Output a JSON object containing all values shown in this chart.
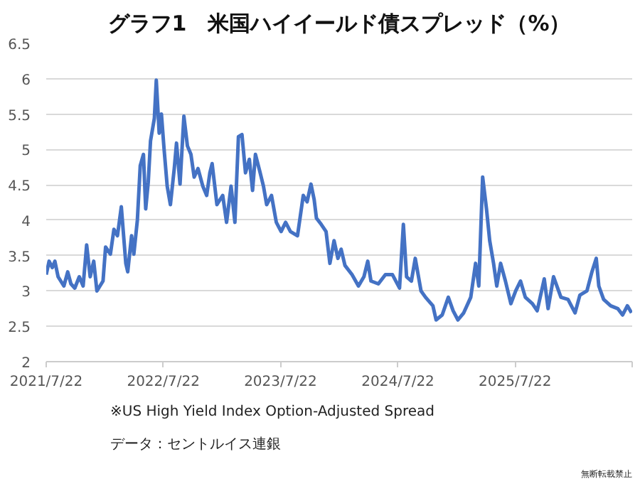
{
  "chart_data": {
    "type": "line",
    "title": "グラフ1　米国ハイイールド債スプレッド（%）",
    "x": [
      "2021-07-22",
      "2021-07-31",
      "2021-08-10",
      "2021-08-18",
      "2021-08-28",
      "2021-09-15",
      "2021-09-27",
      "2021-10-07",
      "2021-10-19",
      "2021-11-02",
      "2021-11-14",
      "2021-11-25",
      "2021-12-06",
      "2021-12-17",
      "2021-12-27",
      "2022-01-15",
      "2022-01-23",
      "2022-02-07",
      "2022-02-18",
      "2022-03-01",
      "2022-03-13",
      "2022-03-27",
      "2022-04-02",
      "2022-04-14",
      "2022-04-21",
      "2022-05-02",
      "2022-05-11",
      "2022-05-21",
      "2022-05-28",
      "2022-06-05",
      "2022-06-12",
      "2022-06-24",
      "2022-06-30",
      "2022-07-09",
      "2022-07-16",
      "2022-07-24",
      "2022-08-03",
      "2022-08-13",
      "2022-08-25",
      "2022-09-01",
      "2022-09-12",
      "2022-09-24",
      "2022-10-05",
      "2022-10-16",
      "2022-10-26",
      "2022-11-07",
      "2022-11-22",
      "2022-12-04",
      "2022-12-14",
      "2022-12-21",
      "2023-01-05",
      "2023-01-23",
      "2023-02-04",
      "2023-02-18",
      "2023-03-02",
      "2023-03-13",
      "2023-03-24",
      "2023-04-04",
      "2023-04-16",
      "2023-04-26",
      "2023-05-05",
      "2023-05-18",
      "2023-05-30",
      "2023-06-09",
      "2023-06-24",
      "2023-07-09",
      "2023-07-24",
      "2023-08-07",
      "2023-08-22",
      "2023-09-13",
      "2023-10-01",
      "2023-10-13",
      "2023-10-25",
      "2023-11-04",
      "2023-11-11",
      "2023-11-26",
      "2023-12-11",
      "2023-12-23",
      "2024-01-05",
      "2024-01-17",
      "2024-01-27",
      "2024-02-08",
      "2024-03-01",
      "2024-03-21",
      "2024-04-07",
      "2024-04-19",
      "2024-04-29",
      "2024-05-22",
      "2024-06-13",
      "2024-07-05",
      "2024-07-27",
      "2024-08-08",
      "2024-08-18",
      "2024-09-02",
      "2024-09-14",
      "2024-10-02",
      "2024-10-16",
      "2024-11-08",
      "2024-11-18",
      "2024-12-07",
      "2024-12-26",
      "2025-01-10",
      "2025-01-25",
      "2025-02-12",
      "2025-03-06",
      "2025-03-21",
      "2025-03-31",
      "2025-04-12",
      "2025-04-24",
      "2025-05-04",
      "2025-05-16",
      "2025-05-26",
      "2025-06-07",
      "2025-06-22",
      "2025-07-09",
      "2025-07-24",
      "2025-08-08",
      "2025-08-23",
      "2025-09-14",
      "2025-09-29",
      "2025-10-21",
      "2025-11-02",
      "2025-11-19",
      "2025-12-12",
      "2026-01-03",
      "2026-01-25",
      "2026-02-09",
      "2026-03-03",
      "2026-03-18",
      "2026-04-01",
      "2026-04-09",
      "2026-04-24",
      "2026-05-16",
      "2026-06-07",
      "2026-06-22",
      "2026-07-07",
      "2026-07-20"
    ],
    "series": [
      {
        "color": "#4472c4",
        "values": [
          3.23,
          3.42,
          3.33,
          3.42,
          3.2,
          3.07,
          3.27,
          3.1,
          3.04,
          3.2,
          3.07,
          3.65,
          3.2,
          3.42,
          3.0,
          3.14,
          3.62,
          3.52,
          3.87,
          3.78,
          4.19,
          3.39,
          3.27,
          3.78,
          3.52,
          4.0,
          4.77,
          4.93,
          4.16,
          4.54,
          5.12,
          5.44,
          5.98,
          5.23,
          5.5,
          5.02,
          4.48,
          4.22,
          4.73,
          5.09,
          4.51,
          5.47,
          5.05,
          4.93,
          4.61,
          4.73,
          4.48,
          4.35,
          4.67,
          4.8,
          4.22,
          4.35,
          3.97,
          4.48,
          3.97,
          5.18,
          5.21,
          4.67,
          4.86,
          4.42,
          4.93,
          4.7,
          4.48,
          4.22,
          4.35,
          3.97,
          3.84,
          3.97,
          3.84,
          3.78,
          4.35,
          4.26,
          4.51,
          4.29,
          4.03,
          3.94,
          3.84,
          3.39,
          3.71,
          3.46,
          3.59,
          3.36,
          3.23,
          3.07,
          3.2,
          3.42,
          3.14,
          3.1,
          3.23,
          3.23,
          3.04,
          3.94,
          3.2,
          3.14,
          3.46,
          3.0,
          2.91,
          2.79,
          2.59,
          2.66,
          2.91,
          2.72,
          2.59,
          2.69,
          2.91,
          3.39,
          3.07,
          4.61,
          4.16,
          3.71,
          3.39,
          3.07,
          3.39,
          3.14,
          2.82,
          3.0,
          3.14,
          2.91,
          2.82,
          2.72,
          3.17,
          2.75,
          3.2,
          2.91,
          2.88,
          2.69,
          2.94,
          3.0,
          3.26,
          3.46,
          3.07,
          2.88,
          2.79,
          2.75,
          2.66,
          2.79,
          2.69
        ]
      }
    ],
    "xlim": [
      "2021-07-22",
      "2026-07-22"
    ],
    "xticks": [
      {
        "value": "2021-07-22",
        "label": "2021/7/22"
      },
      {
        "value": "2022-07-22",
        "label": "2022/7/22"
      },
      {
        "value": "2023-07-22",
        "label": "2023/7/22"
      },
      {
        "value": "2024-07-22",
        "label": "2024/7/22"
      },
      {
        "value": "2025-07-22",
        "label": "2025/7/22"
      },
      {
        "value": "2026-07-22",
        "label": null
      }
    ],
    "ylim": [
      2,
      6.5
    ],
    "yticks": [
      2,
      2.5,
      3,
      3.5,
      4,
      4.5,
      5,
      5.5,
      6,
      6.5
    ],
    "grid": "y",
    "annotations": [
      "※US High Yield Index Option-Adjusted Spread",
      "データ：セントルイス連銀",
      "無断転載禁止"
    ]
  }
}
